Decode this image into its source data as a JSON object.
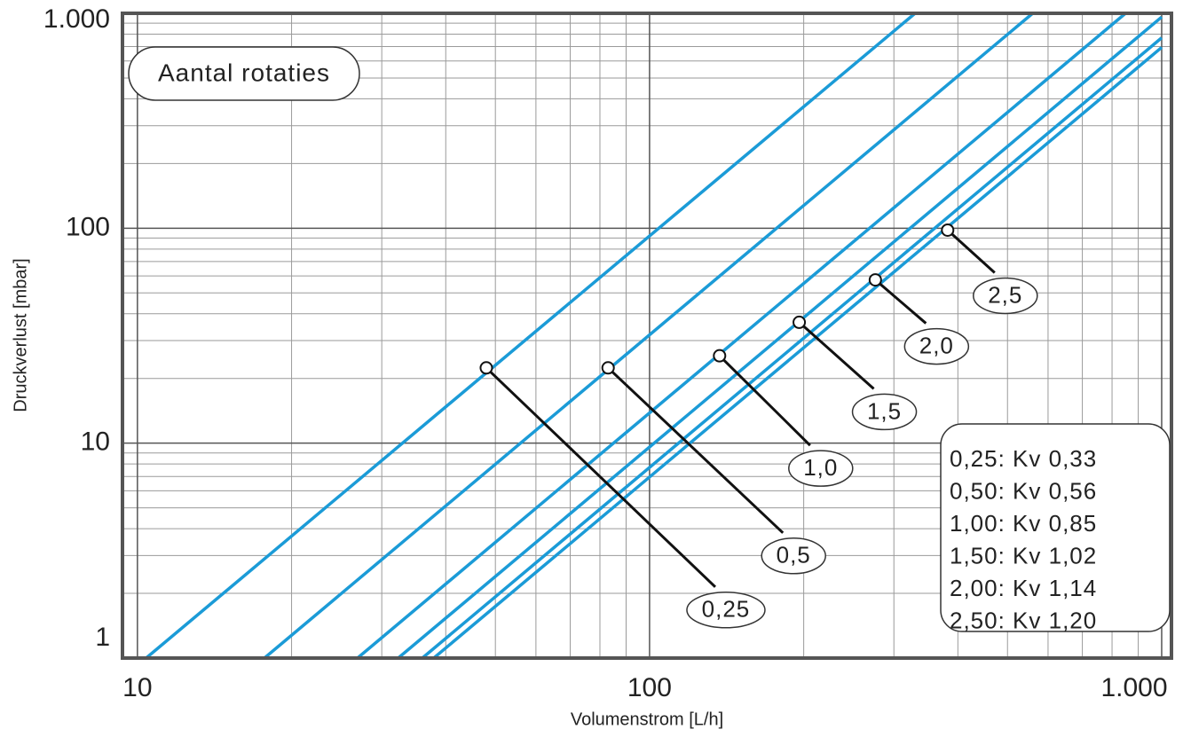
{
  "chart_data": {
    "type": "line",
    "annotation": "Aantal rotaties",
    "x_label": "Volumenstrom  [L/h]",
    "y_label": "Druckverlust  [mbar]",
    "log_x": true,
    "log_y": true,
    "grid": true,
    "minor_grid": true,
    "legend_position": "lower right",
    "xlim": [
      9.35,
      1045
    ],
    "ylim": [
      1,
      1000
    ],
    "xticks": [
      {
        "value": 10,
        "label": "10"
      },
      100,
      {
        "value": 1000,
        "label": "1.000"
      }
    ],
    "yticks": [
      1,
      10,
      100,
      {
        "value": 1000,
        "label": "1.000"
      }
    ],
    "series": [
      {
        "name": "0,25: Kv 0,33",
        "color": "#1b9bd7",
        "x": [
          10.4,
          330
        ],
        "values": [
          1,
          1000
        ]
      },
      {
        "name": "0,50: Kv 0,56",
        "color": "#1b9bd7",
        "x": [
          17.7,
          560
        ],
        "values": [
          1,
          1000
        ]
      },
      {
        "name": "1,00: Kv 0,85",
        "color": "#1b9bd7",
        "x": [
          26.9,
          850
        ],
        "values": [
          1,
          1000
        ]
      },
      {
        "name": "1,50: Kv 1,02",
        "color": "#1b9bd7",
        "x": [
          32.3,
          1000
        ],
        "values": [
          1,
          961
        ]
      },
      {
        "name": "2,00: Kv 1,14",
        "color": "#1b9bd7",
        "x": [
          36.0,
          1000
        ],
        "values": [
          1,
          769
        ]
      },
      {
        "name": "2,50: Kv 1,20",
        "color": "#1b9bd7",
        "x": [
          37.9,
          1000
        ],
        "values": [
          1,
          694
        ]
      }
    ],
    "markers": [
      {
        "x": 48,
        "y": 22.4,
        "label": "0,25"
      },
      {
        "x": 83,
        "y": 22.4,
        "label": "0,5"
      },
      {
        "x": 137,
        "y": 25.5,
        "label": "1,0"
      },
      {
        "x": 196,
        "y": 36.5,
        "label": "1,5"
      },
      {
        "x": 276,
        "y": 57.5,
        "label": "2,0"
      },
      {
        "x": 382,
        "y": 98,
        "label": "2,5"
      }
    ]
  }
}
